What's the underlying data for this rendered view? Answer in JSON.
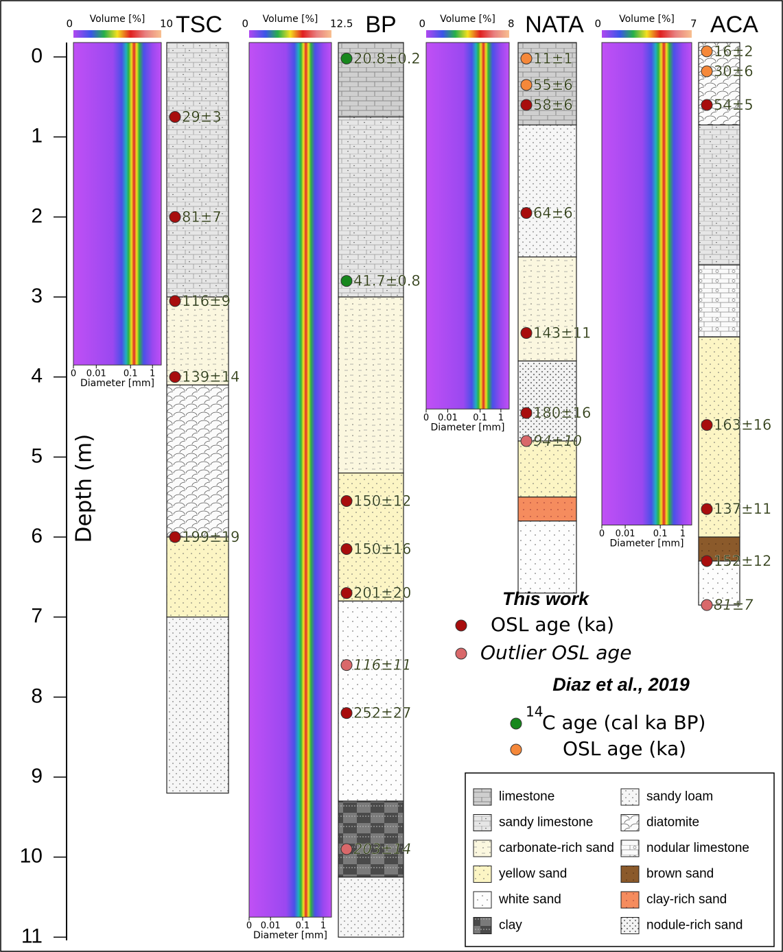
{
  "depth_axis": {
    "label": "Depth (m)",
    "ylim": [
      -0.18,
      11.1
    ],
    "ticks": [
      0,
      1,
      2,
      3,
      4,
      5,
      6,
      7,
      8,
      9,
      10,
      11
    ]
  },
  "volume_label": "Volume [%]",
  "diameter_axis": {
    "label": "Diameter [mm]",
    "ticks": [
      "0",
      "0.01",
      "0.1",
      "1"
    ]
  },
  "legend": {
    "this_work": "This work",
    "diaz": "Diaz et al., 2019"
  },
  "age_types": [
    {
      "name": "OSL age (ka)",
      "color": "#a80d0d"
    },
    {
      "name": "Outlier OSL age",
      "color": "#d9686a"
    },
    {
      "superscript": "14",
      "name": "C age (cal ka BP)",
      "color": "#17871d"
    },
    {
      "name": "OSL age (ka)",
      "color": "#f5883a"
    }
  ],
  "lithologies": [
    "limestone",
    "sandy limestone",
    "carbonate-rich sand",
    "yellow sand",
    "white sand",
    "clay",
    "sandy loam",
    "diatomite",
    "nodular limestone",
    "brown sand",
    "clay-rich sand",
    "nodule-rich sand"
  ],
  "columns": [
    {
      "name": "TSC",
      "vmin": 0,
      "vmax": 10,
      "layers": [
        {
          "lith": 1,
          "top": -0.18,
          "bottom": 3
        },
        {
          "lith": 2,
          "top": 3,
          "bottom": 4.1
        },
        {
          "lith": 7,
          "top": 4.1,
          "bottom": 6
        },
        {
          "lith": 3,
          "top": 6,
          "bottom": 7
        },
        {
          "lith": 6,
          "top": 7,
          "bottom": 9.2
        }
      ],
      "samples": [
        {
          "label": "29±3",
          "depth": 0.75,
          "type": 0
        },
        {
          "label": "81±7",
          "depth": 2.0,
          "type": 0
        },
        {
          "label": "116±9",
          "depth": 3.05,
          "type": 0
        },
        {
          "label": "139±14",
          "depth": 4.0,
          "type": 0
        },
        {
          "label": "199±19",
          "depth": 6.0,
          "type": 0
        }
      ]
    },
    {
      "name": "BP",
      "vmin": 0,
      "vmax": 12.5,
      "layers": [
        {
          "lith": 0,
          "top": -0.18,
          "bottom": 0.75
        },
        {
          "lith": 1,
          "top": 0.75,
          "bottom": 3
        },
        {
          "lith": 2,
          "top": 3,
          "bottom": 5.2
        },
        {
          "lith": 3,
          "top": 5.2,
          "bottom": 6.8
        },
        {
          "lith": 4,
          "top": 6.8,
          "bottom": 9.3
        },
        {
          "lith": 5,
          "top": 9.3,
          "bottom": 10.25
        },
        {
          "lith": 6,
          "top": 10.25,
          "bottom": 11.0
        }
      ],
      "samples": [
        {
          "label": "20.8±0.2",
          "depth": 0.02,
          "type": 2
        },
        {
          "label": "41.7±0.8",
          "depth": 2.8,
          "type": 2
        },
        {
          "label": "150±12",
          "depth": 5.55,
          "type": 0
        },
        {
          "label": "150±16",
          "depth": 6.15,
          "type": 0
        },
        {
          "label": "201±20",
          "depth": 6.7,
          "type": 0
        },
        {
          "label": "116±11",
          "depth": 7.6,
          "type": 1
        },
        {
          "label": "252±27",
          "depth": 8.2,
          "type": 0
        },
        {
          "label": "203±14",
          "depth": 9.9,
          "type": 1
        }
      ]
    },
    {
      "name": "NATA",
      "vmin": 0,
      "vmax": 8,
      "layers": [
        {
          "lith": 0,
          "top": -0.18,
          "bottom": 0.85
        },
        {
          "lith": 6,
          "top": 0.85,
          "bottom": 2.5
        },
        {
          "lith": 2,
          "top": 2.5,
          "bottom": 3.8
        },
        {
          "lith": 11,
          "top": 3.8,
          "bottom": 4.8
        },
        {
          "lith": 3,
          "top": 4.8,
          "bottom": 5.5
        },
        {
          "lith": 10,
          "top": 5.5,
          "bottom": 5.8
        },
        {
          "lith": 4,
          "top": 5.8,
          "bottom": 6.7
        }
      ],
      "samples": [
        {
          "label": "11±1",
          "depth": 0.02,
          "type": 3
        },
        {
          "label": "55±6",
          "depth": 0.35,
          "type": 3
        },
        {
          "label": "58±6",
          "depth": 0.6,
          "type": 0
        },
        {
          "label": "64±6",
          "depth": 1.95,
          "type": 0
        },
        {
          "label": "143±11",
          "depth": 3.45,
          "type": 0
        },
        {
          "label": "180±16",
          "depth": 4.45,
          "type": 0
        },
        {
          "label": "94±10",
          "depth": 4.8,
          "type": 1
        }
      ]
    },
    {
      "name": "ACA",
      "vmin": 0,
      "vmax": 7,
      "layers": [
        {
          "lith": 7,
          "top": -0.18,
          "bottom": 0.85
        },
        {
          "lith": 1,
          "top": 0.85,
          "bottom": 2.6
        },
        {
          "lith": 8,
          "top": 2.6,
          "bottom": 3.5
        },
        {
          "lith": 3,
          "top": 3.5,
          "bottom": 6
        },
        {
          "lith": 9,
          "top": 6,
          "bottom": 6.3
        },
        {
          "lith": 4,
          "top": 6.3,
          "bottom": 6.85
        }
      ],
      "samples": [
        {
          "label": "16±2",
          "depth": -0.07,
          "type": 3
        },
        {
          "label": "30±6",
          "depth": 0.18,
          "type": 3
        },
        {
          "label": "54±5",
          "depth": 0.6,
          "type": 0
        },
        {
          "label": "163±16",
          "depth": 4.6,
          "type": 0
        },
        {
          "label": "137±11",
          "depth": 5.65,
          "type": 0
        },
        {
          "label": "152±12",
          "depth": 6.3,
          "type": 0
        },
        {
          "label": "81±7",
          "depth": 6.85,
          "type": 1
        }
      ]
    }
  ]
}
